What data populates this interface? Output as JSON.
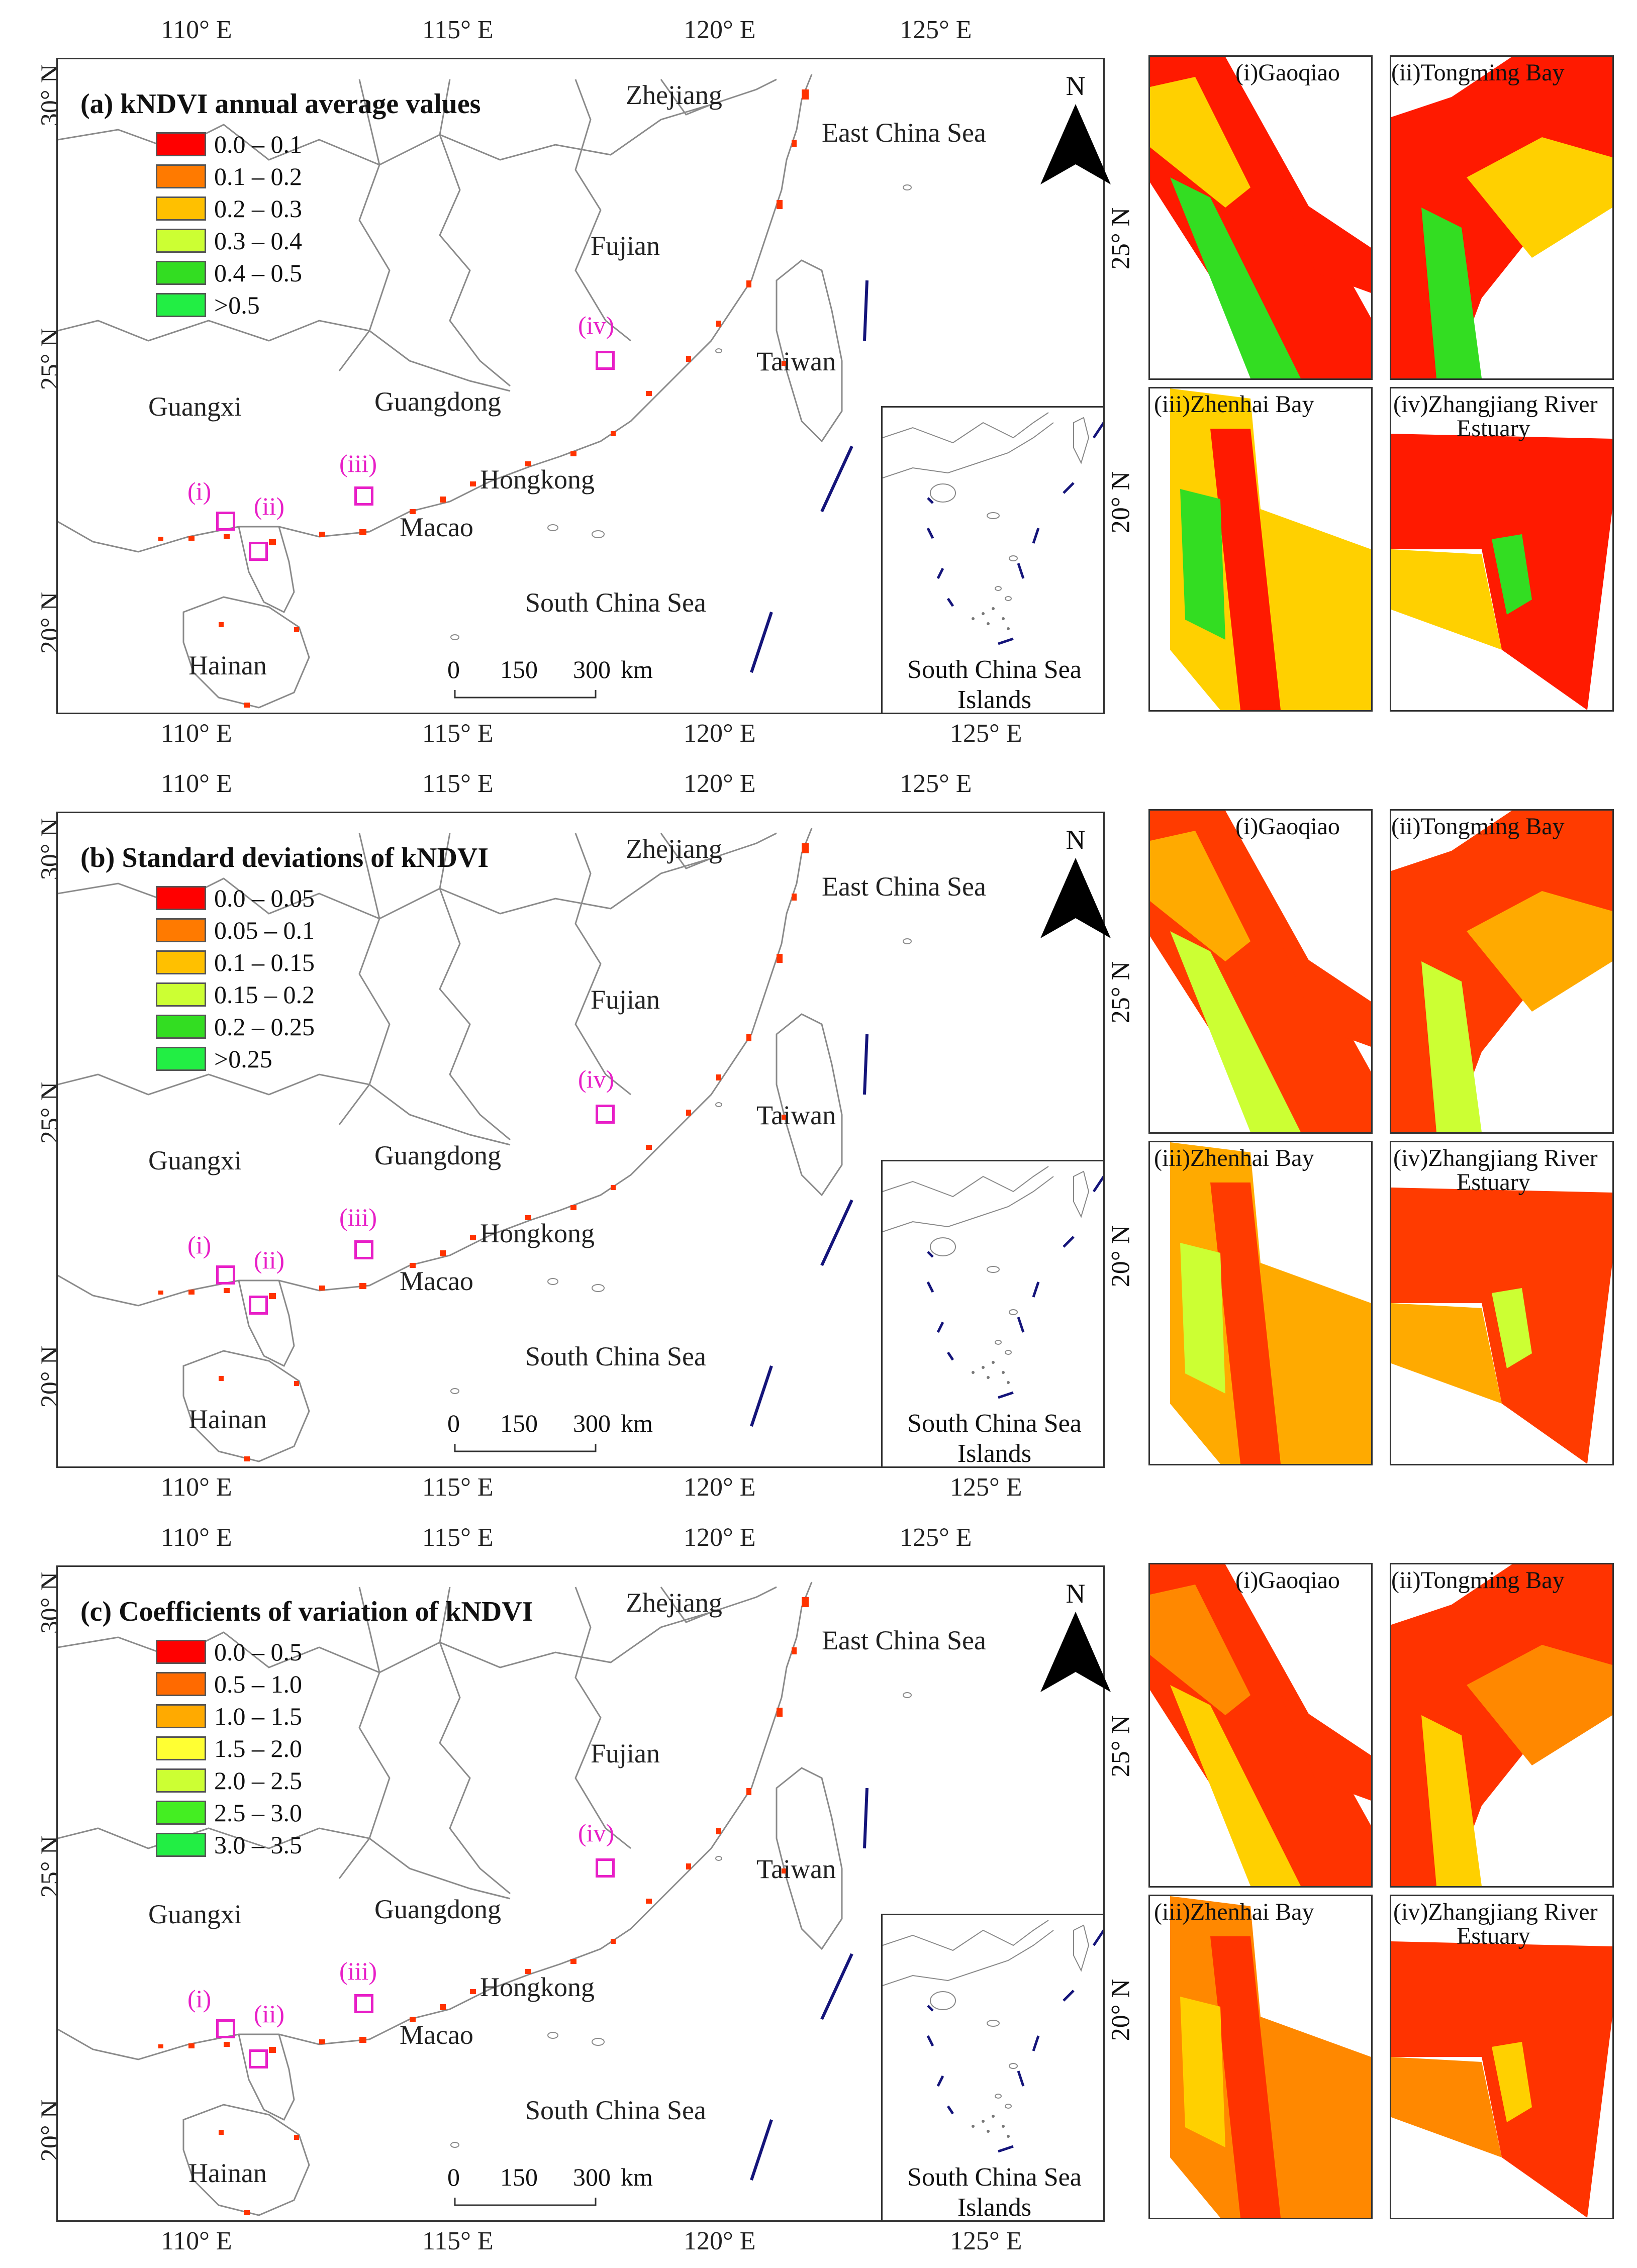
{
  "axes": {
    "lon_ticks": [
      "110° E",
      "115° E",
      "120° E",
      "125° E"
    ],
    "lat_ticks": [
      "30° N",
      "25° N",
      "20° N"
    ],
    "side_lat_ticks": [
      "25° N",
      "20° N"
    ]
  },
  "place_labels": {
    "zhejiang": "Zhejiang",
    "east_china_sea": "East China Sea",
    "fujian": "Fujian",
    "taiwan": "Taiwan",
    "guangxi": "Guangxi",
    "guangdong": "Guangdong",
    "hongkong": "Hongkong",
    "macao": "Macao",
    "south_china_sea": "South China Sea",
    "hainan": "Hainan",
    "inset_line1": "South China Sea",
    "inset_line2": "Islands"
  },
  "north_arrow": "N",
  "scale_bar": {
    "s0": "0",
    "s1": "150",
    "s2": "300",
    "unit": "km"
  },
  "site_markers": [
    "(i)",
    "(ii)",
    "(iii)",
    "(iv)"
  ],
  "detail_titles": {
    "i": "(i)Gaoqiao",
    "ii": "(ii)Tongming Bay",
    "iii": "(iii)Zhenhai Bay",
    "iv_line1": "(iv)Zhangjiang River",
    "iv_line2": "Estuary"
  },
  "panels": [
    {
      "title": "(a) kNDVI annual average values",
      "legend": [
        {
          "label": "0.0 – 0.1",
          "color": "#ff0000"
        },
        {
          "label": "0.1 – 0.2",
          "color": "#ff7a00"
        },
        {
          "label": "0.2 – 0.3",
          "color": "#ffc000"
        },
        {
          "label": "0.3 – 0.4",
          "color": "#ccff33"
        },
        {
          "label": "0.4 – 0.5",
          "color": "#33dd22"
        },
        {
          "label": ">0.5",
          "color": "#22ee44"
        }
      ]
    },
    {
      "title": "(b) Standard deviations of kNDVI",
      "legend": [
        {
          "label": "0.0 – 0.05",
          "color": "#ff0000"
        },
        {
          "label": "0.05 – 0.1",
          "color": "#ff7a00"
        },
        {
          "label": "0.1 – 0.15",
          "color": "#ffc000"
        },
        {
          "label": "0.15 – 0.2",
          "color": "#ccff33"
        },
        {
          "label": "0.2 – 0.25",
          "color": "#33dd22"
        },
        {
          "label": ">0.25",
          "color": "#22ee44"
        }
      ]
    },
    {
      "title": "(c) Coefficients of variation of kNDVI",
      "legend": [
        {
          "label": "0.0 – 0.5",
          "color": "#ff0000"
        },
        {
          "label": "0.5 – 1.0",
          "color": "#ff6a00"
        },
        {
          "label": "1.0 – 1.5",
          "color": "#ffaa00"
        },
        {
          "label": "1.5 – 2.0",
          "color": "#ffff33"
        },
        {
          "label": "2.0 – 2.5",
          "color": "#ccff33"
        },
        {
          "label": "2.5 – 3.0",
          "color": "#44ee22"
        },
        {
          "label": "3.0 – 3.5",
          "color": "#22ee44"
        }
      ]
    }
  ]
}
